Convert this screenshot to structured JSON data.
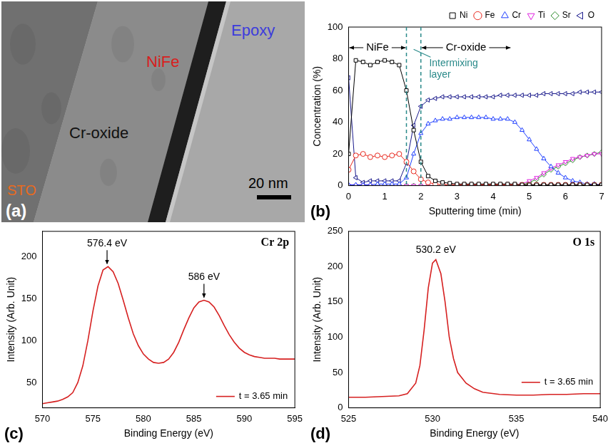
{
  "image": {
    "panel": "(a)",
    "labels": [
      {
        "text": "STO",
        "color": "#e86a1e"
      },
      {
        "text": "Cr-oxide",
        "color": "#111111"
      },
      {
        "text": "NiFe",
        "color": "#d81e1e"
      },
      {
        "text": "Epoxy",
        "color": "#3c3cdc"
      }
    ],
    "scale_bar": "20 nm"
  },
  "chart_data": [
    {
      "type": "line",
      "panel": "(b)",
      "x_label": "Sputtering time (min)",
      "y_label": "Concentration (%)",
      "xlim": [
        0,
        7
      ],
      "xticks": [
        0,
        1,
        2,
        3,
        4,
        5,
        6,
        7
      ],
      "ylim": [
        0,
        100
      ],
      "yticks": [
        0,
        20,
        40,
        60,
        80,
        100
      ],
      "grid": false,
      "legend": "top",
      "x": [
        0,
        0.2,
        0.4,
        0.6,
        0.8,
        1.0,
        1.2,
        1.4,
        1.6,
        1.8,
        2.0,
        2.2,
        2.4,
        2.6,
        2.8,
        3.0,
        3.2,
        3.4,
        3.6,
        3.8,
        4.0,
        4.2,
        4.4,
        4.6,
        4.8,
        5.0,
        5.2,
        5.4,
        5.6,
        5.8,
        6.0,
        6.2,
        6.4,
        6.6,
        6.8,
        7.0
      ],
      "series": [
        {
          "name": "Ni",
          "color": "#000000",
          "marker": "square",
          "values": [
            20,
            79,
            78,
            76,
            78,
            79,
            78,
            76,
            60,
            35,
            15,
            6,
            3,
            2,
            1.5,
            1,
            1,
            1,
            1,
            1,
            1,
            1,
            1,
            1,
            0.5,
            0.5,
            0.5,
            0.5,
            0.5,
            0.5,
            0.5,
            0.5,
            0.5,
            0.5,
            0.5,
            0.5
          ]
        },
        {
          "name": "Fe",
          "color": "#e8281e",
          "marker": "circle",
          "values": [
            10,
            19,
            20,
            18,
            19,
            18,
            19,
            20,
            15,
            9,
            4,
            2,
            1,
            0.5,
            0.5,
            0.5,
            0.5,
            0.5,
            0.5,
            0.5,
            0.5,
            0.5,
            0.5,
            0.5,
            0.5,
            0.5,
            0.5,
            0.5,
            0.5,
            0.5,
            0.5,
            0.5,
            0.5,
            0.5,
            0.5,
            0.5
          ]
        },
        {
          "name": "Cr",
          "color": "#1f3fff",
          "marker": "triangle-up",
          "values": [
            0.5,
            0.5,
            0.5,
            0.5,
            1,
            1,
            1,
            1,
            5,
            20,
            33,
            39,
            41,
            42,
            42,
            43,
            43,
            43,
            43,
            43,
            42,
            42,
            42,
            40,
            35,
            29,
            23,
            17,
            12,
            8,
            5,
            3,
            2,
            1,
            1,
            0.5
          ]
        },
        {
          "name": "Ti",
          "color": "#e020e0",
          "marker": "triangle-down",
          "values": [
            0,
            0,
            0,
            0,
            0,
            0,
            0,
            0,
            0,
            0,
            0,
            0,
            0,
            0,
            0,
            0,
            0,
            0,
            0,
            0,
            0,
            0,
            0,
            0,
            1,
            3,
            5,
            8,
            11,
            13,
            15,
            17,
            18,
            19,
            20,
            20
          ]
        },
        {
          "name": "Sr",
          "color": "#2e8b2e",
          "marker": "diamond",
          "values": [
            0,
            0,
            0,
            0,
            0,
            0,
            0,
            0,
            0,
            0,
            0,
            0,
            0,
            0,
            0,
            0,
            0,
            0,
            0,
            0,
            0,
            0,
            0,
            0,
            0.5,
            2,
            4,
            7,
            10,
            12,
            14,
            16,
            18,
            19,
            20,
            21
          ]
        },
        {
          "name": "O",
          "color": "#1a1a8c",
          "marker": "triangle-left",
          "values": [
            68,
            5,
            2,
            3,
            3,
            3,
            3,
            3,
            14,
            38,
            50,
            54,
            55,
            56,
            56,
            56,
            56,
            56,
            56,
            56,
            56,
            57,
            57,
            57,
            57,
            57,
            57,
            58,
            58,
            58,
            58,
            58,
            59,
            59,
            59,
            59
          ]
        }
      ],
      "annotations": [
        {
          "text": "NiFe",
          "x": [
            0,
            1.6
          ],
          "y": 87
        },
        {
          "text": "Cr-oxide",
          "x": [
            2.0,
            4.5
          ],
          "y": 87
        },
        {
          "text": "Intermixing layer",
          "x": 2.15,
          "y": 77,
          "color": "#2a8a8a"
        }
      ],
      "vlines": {
        "x": [
          1.6,
          2.0
        ],
        "color": "#2a8a8a",
        "line_style": "dashed"
      }
    },
    {
      "type": "line",
      "panel": "(c)",
      "title": "Cr 2p",
      "x_label": "Binding Energy (eV)",
      "y_label": "Intensity (Arb. Unit)",
      "xlim": [
        570,
        595
      ],
      "xticks": [
        570,
        575,
        580,
        585,
        590,
        595
      ],
      "ylim": [
        20,
        230
      ],
      "yticks": [
        50,
        100,
        150,
        200
      ],
      "grid": false,
      "legend": "lower right",
      "x": [
        570,
        570.5,
        571,
        571.5,
        572,
        572.5,
        573,
        573.5,
        574,
        574.5,
        575,
        575.5,
        576,
        576.5,
        577,
        577.5,
        578,
        578.5,
        579,
        579.5,
        580,
        580.5,
        581,
        581.5,
        582,
        582.5,
        583,
        583.5,
        584,
        584.5,
        585,
        585.5,
        586,
        586.5,
        587,
        587.5,
        588,
        588.5,
        589,
        589.5,
        590,
        590.5,
        591,
        591.5,
        592,
        592.5,
        593,
        593.5,
        594,
        594.5,
        595
      ],
      "series": [
        {
          "name": "t = 3.65 min",
          "color": "#d62020",
          "marker": "none",
          "values": [
            25,
            26,
            27,
            28,
            30,
            33,
            38,
            50,
            70,
            100,
            135,
            165,
            184,
            188,
            182,
            168,
            148,
            127,
            108,
            94,
            84,
            78,
            74,
            73,
            74,
            78,
            86,
            98,
            113,
            127,
            139,
            146,
            148,
            146,
            140,
            130,
            118,
            107,
            98,
            91,
            86,
            83,
            81,
            80,
            79,
            79,
            79,
            78,
            78,
            78,
            78
          ]
        }
      ],
      "annotations": [
        {
          "text": "576.4 eV",
          "x": 576.4,
          "y": 188,
          "arrow": true
        },
        {
          "text": "586 eV",
          "x": 586,
          "y": 148,
          "arrow": true
        }
      ]
    },
    {
      "type": "line",
      "panel": "(d)",
      "title": "O 1s",
      "x_label": "Binding Energy (eV)",
      "y_label": "Intensity (Arb. Unit)",
      "xlim": [
        525,
        540
      ],
      "xticks": [
        525,
        530,
        535,
        540
      ],
      "ylim": [
        0,
        250
      ],
      "yticks": [
        0,
        50,
        100,
        150,
        200,
        250
      ],
      "grid": false,
      "legend": "lower right",
      "x": [
        525,
        526,
        527,
        528,
        528.5,
        529,
        529.25,
        529.5,
        529.75,
        530,
        530.2,
        530.5,
        530.75,
        531,
        531.25,
        531.5,
        532,
        532.5,
        533,
        534,
        535,
        536,
        537,
        538,
        539,
        540
      ],
      "series": [
        {
          "name": "t = 3.65 min",
          "color": "#d62020",
          "marker": "none",
          "values": [
            15,
            15,
            16,
            17,
            20,
            35,
            60,
            110,
            170,
            205,
            210,
            190,
            150,
            100,
            70,
            50,
            35,
            27,
            22,
            19,
            18,
            18,
            19,
            19,
            20,
            20
          ]
        }
      ],
      "annotations": [
        {
          "text": "530.2 eV",
          "x": 530.2,
          "y": 210,
          "arrow": false
        }
      ]
    }
  ]
}
